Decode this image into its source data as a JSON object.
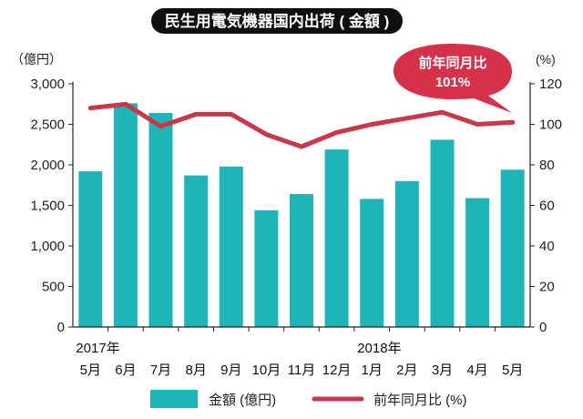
{
  "chart_data": {
    "type": "bar+line",
    "title": "民生用電気機器国内出荷 ( 金額 )",
    "categories": [
      "5月",
      "6月",
      "7月",
      "8月",
      "9月",
      "10月",
      "11月",
      "12月",
      "1月",
      "2月",
      "3月",
      "4月",
      "5月"
    ],
    "year_labels": [
      {
        "label": "2017年",
        "index": 0
      },
      {
        "label": "2018年",
        "index": 8
      }
    ],
    "left_axis": {
      "unit": "（億円）",
      "ylim": [
        0,
        3000
      ],
      "ticks": [
        "0",
        "500",
        "1,000",
        "1,500",
        "2,000",
        "2,500",
        "3,000"
      ],
      "tick_values": [
        0,
        500,
        1000,
        1500,
        2000,
        2500,
        3000
      ]
    },
    "right_axis": {
      "unit": "(%)",
      "ylim": [
        0,
        120
      ],
      "ticks": [
        "0",
        "20",
        "40",
        "60",
        "80",
        "100",
        "120"
      ],
      "tick_values": [
        0,
        20,
        40,
        60,
        80,
        100,
        120
      ]
    },
    "series": [
      {
        "name": "金額 (億円)",
        "type": "bar",
        "axis": "left",
        "color": "#1eb5b8",
        "values": [
          1920,
          2760,
          2640,
          1870,
          1980,
          1440,
          1640,
          2190,
          1580,
          1800,
          2310,
          1590,
          1940
        ]
      },
      {
        "name": "前年同月比 (%)",
        "type": "line",
        "axis": "right",
        "color": "#c8384a",
        "values": [
          108,
          110,
          99,
          105,
          105,
          95,
          89,
          96,
          100,
          103,
          106,
          100,
          101
        ]
      }
    ],
    "callout": {
      "line1": "前年同月比",
      "line2": "101%",
      "color": "#d6304a"
    },
    "grid": false,
    "legend_position": "bottom"
  }
}
